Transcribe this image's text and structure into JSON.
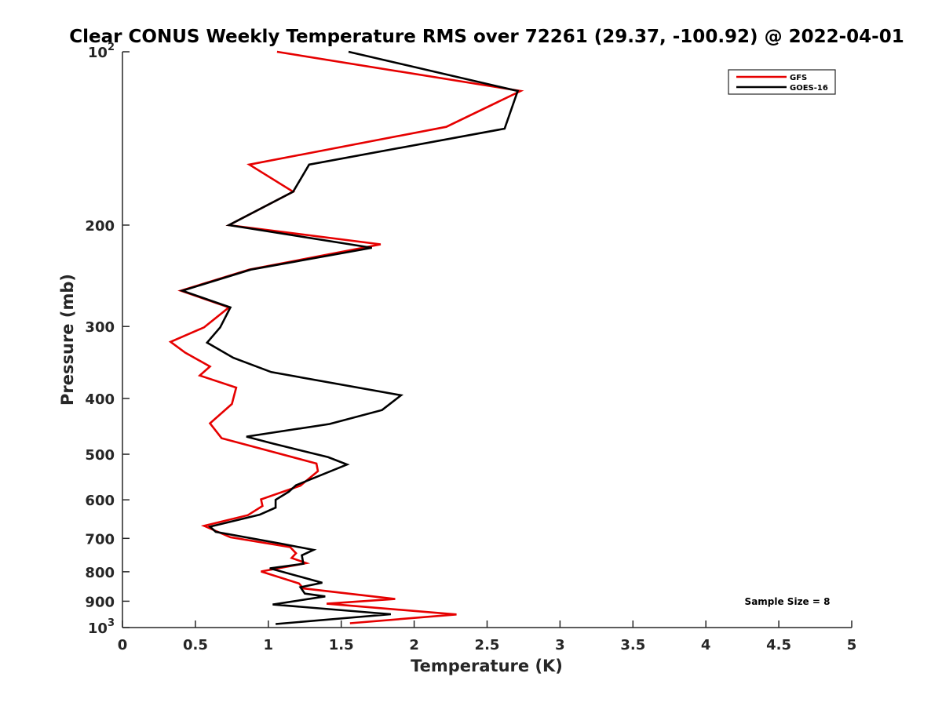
{
  "chart_data": {
    "type": "line",
    "title": "Clear CONUS Weekly Temperature RMS over 72261 (29.37, -100.92) @ 2022-04-01",
    "xlabel": "Temperature (K)",
    "ylabel": "Pressure (mb)",
    "xlim": [
      0,
      5
    ],
    "ylim": [
      100,
      1000
    ],
    "y_scale": "log",
    "y_reversed": true,
    "grid": false,
    "legend_position": "top-right",
    "x_ticks": [
      "0",
      "0.5",
      "1",
      "1.5",
      "2",
      "2.5",
      "3",
      "3.5",
      "4",
      "4.5",
      "5"
    ],
    "y_ticks": [
      {
        "value": 100,
        "label": "10",
        "sup": "2"
      },
      {
        "value": 200,
        "label": "200",
        "sup": ""
      },
      {
        "value": 300,
        "label": "300",
        "sup": ""
      },
      {
        "value": 400,
        "label": "400",
        "sup": ""
      },
      {
        "value": 500,
        "label": "500",
        "sup": ""
      },
      {
        "value": 600,
        "label": "600",
        "sup": ""
      },
      {
        "value": 700,
        "label": "700",
        "sup": ""
      },
      {
        "value": 800,
        "label": "800",
        "sup": ""
      },
      {
        "value": 900,
        "label": "900",
        "sup": ""
      },
      {
        "value": 1000,
        "label": "10",
        "sup": "3"
      }
    ],
    "annotation": "Sample Size = 8",
    "series": [
      {
        "name": "GFS",
        "color": "#e60000",
        "points": [
          [
            1.06,
            100
          ],
          [
            2.73,
            117
          ],
          [
            2.22,
            135
          ],
          [
            0.87,
            157
          ],
          [
            1.17,
            175
          ],
          [
            0.73,
            200
          ],
          [
            1.77,
            216
          ],
          [
            0.87,
            239
          ],
          [
            0.4,
            260
          ],
          [
            0.73,
            278
          ],
          [
            0.56,
            301
          ],
          [
            0.33,
            319
          ],
          [
            0.43,
            333
          ],
          [
            0.6,
            352
          ],
          [
            0.53,
            365
          ],
          [
            0.78,
            383
          ],
          [
            0.75,
            409
          ],
          [
            0.6,
            442
          ],
          [
            0.68,
            469
          ],
          [
            1.33,
            519
          ],
          [
            1.34,
            535
          ],
          [
            1.22,
            567
          ],
          [
            0.95,
            599
          ],
          [
            0.96,
            615
          ],
          [
            0.86,
            638
          ],
          [
            0.56,
            666
          ],
          [
            0.74,
            697
          ],
          [
            1.15,
            725
          ],
          [
            1.19,
            743
          ],
          [
            1.16,
            757
          ],
          [
            1.26,
            773
          ],
          [
            0.95,
            799
          ],
          [
            1.21,
            838
          ],
          [
            1.24,
            855
          ],
          [
            1.87,
            892
          ],
          [
            1.4,
            909
          ],
          [
            2.29,
            949
          ],
          [
            1.56,
            983
          ]
        ]
      },
      {
        "name": "GOES-16",
        "color": "#000000",
        "points": [
          [
            1.55,
            100
          ],
          [
            2.71,
            117
          ],
          [
            2.62,
            136
          ],
          [
            1.28,
            157
          ],
          [
            1.17,
            175
          ],
          [
            0.73,
            200
          ],
          [
            1.71,
            219
          ],
          [
            0.88,
            239
          ],
          [
            0.41,
            260
          ],
          [
            0.74,
            278
          ],
          [
            0.67,
            301
          ],
          [
            0.58,
            320
          ],
          [
            0.76,
            340
          ],
          [
            1.02,
            360
          ],
          [
            1.91,
            395
          ],
          [
            1.78,
            419
          ],
          [
            1.42,
            443
          ],
          [
            0.85,
            466
          ],
          [
            1.03,
            479
          ],
          [
            1.41,
            506
          ],
          [
            1.54,
            521
          ],
          [
            1.19,
            566
          ],
          [
            1.14,
            581
          ],
          [
            1.05,
            600
          ],
          [
            1.05,
            619
          ],
          [
            0.94,
            637
          ],
          [
            0.6,
            668
          ],
          [
            0.64,
            682
          ],
          [
            1.09,
            715
          ],
          [
            1.31,
            733
          ],
          [
            1.23,
            749
          ],
          [
            1.24,
            775
          ],
          [
            1.01,
            789
          ],
          [
            1.37,
            836
          ],
          [
            1.22,
            851
          ],
          [
            1.25,
            873
          ],
          [
            1.39,
            883
          ],
          [
            1.03,
            912
          ],
          [
            1.84,
            948
          ],
          [
            1.05,
            986
          ]
        ]
      }
    ]
  }
}
